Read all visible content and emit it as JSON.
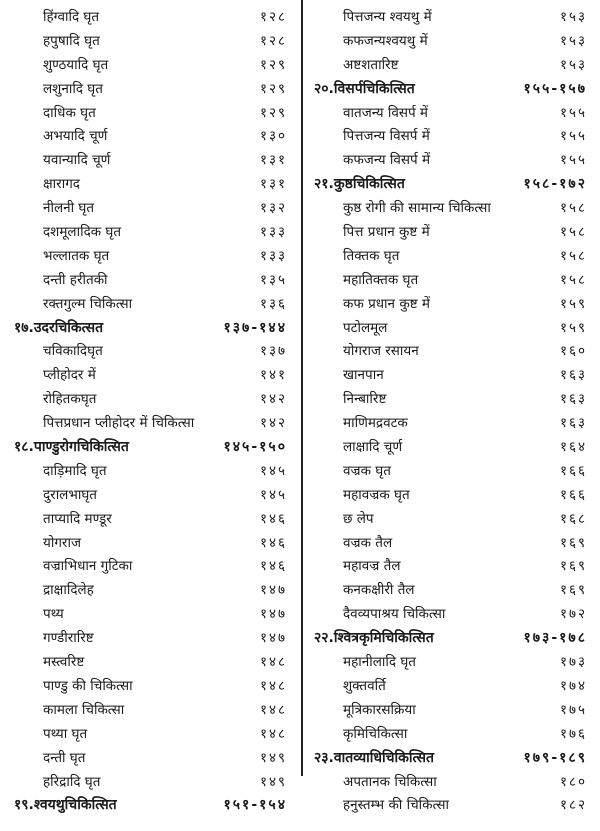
{
  "left": [
    {
      "title": "हिंग्वादि घृत",
      "page": "१२८"
    },
    {
      "title": "हपुषादि घृत",
      "page": "१२८"
    },
    {
      "title": "शुण्ठयादि घृत",
      "page": "१२९"
    },
    {
      "title": "लशुनादि घृत",
      "page": "१२९"
    },
    {
      "title": "दाधिक घृत",
      "page": "१२९"
    },
    {
      "title": "अभयादि चूर्ण",
      "page": "१३०"
    },
    {
      "title": "यवान्यादि चूर्ण",
      "page": "१३१"
    },
    {
      "title": "क्षारागद",
      "page": "१३१"
    },
    {
      "title": "नीलनी घृत",
      "page": "१३२"
    },
    {
      "title": "दशमूलादिक घृत",
      "page": "१३३"
    },
    {
      "title": "भल्लातक घृत",
      "page": "१३३"
    },
    {
      "title": "दन्ती हरीतकी",
      "page": "१३५"
    },
    {
      "title": "रक्तगुल्म चिकित्सा",
      "page": "१३६"
    },
    {
      "title": "१७.उदरचिकित्सत",
      "page": "१३७-१४४",
      "heading": true
    },
    {
      "title": "चविकादिघृत",
      "page": "१३७"
    },
    {
      "title": "प्लीहोदर में",
      "page": "१४१"
    },
    {
      "title": "रोहितकघृत",
      "page": "१४२"
    },
    {
      "title": "पित्तप्रधान प्लीहोदर में चिकित्सा",
      "page": "१४२"
    },
    {
      "title": "१८.पाण्डुरोगचिकित्सित",
      "page": "१४५-१५०",
      "heading": true
    },
    {
      "title": "दाड़िमादि घृत",
      "page": "१४५"
    },
    {
      "title": "दुरालभाघृत",
      "page": "१४५"
    },
    {
      "title": "ताप्यादि मण्डूर",
      "page": "१४६"
    },
    {
      "title": "योगराज",
      "page": "१४६"
    },
    {
      "title": "वज्राभिधान गुटिका",
      "page": "१४६"
    },
    {
      "title": "द्राक्षादिलेह",
      "page": "१४७"
    },
    {
      "title": "पथ्य",
      "page": "१४७"
    },
    {
      "title": "गण्डीरारिष्ट",
      "page": "१४७"
    },
    {
      "title": "मस्त्वरिष्ट",
      "page": "१४८"
    },
    {
      "title": "पाण्डु की चिकित्सा",
      "page": "१४८"
    },
    {
      "title": "कामला चिकित्सा",
      "page": "१४८"
    },
    {
      "title": "पथ्या घृत",
      "page": "१४८"
    },
    {
      "title": "दन्ती घृत",
      "page": "१४९"
    },
    {
      "title": "हरिद्रादि घृत",
      "page": "१४९"
    },
    {
      "title": "१९.श्वयथुचिकित्सित",
      "page": "१५१-१५४",
      "heading": true
    }
  ],
  "right": [
    {
      "title": "पित्तजन्य श्वयथु में",
      "page": "१५३"
    },
    {
      "title": "कफजन्यश्वयथु में",
      "page": "१५३"
    },
    {
      "title": "अष्टशतारिष्ट",
      "page": "१५३"
    },
    {
      "title": "२०.विसर्पचिकित्सित",
      "page": "१५५-१५७",
      "heading": true
    },
    {
      "title": "वातजन्य विसर्प में",
      "page": "१५५"
    },
    {
      "title": "पित्तजन्य विसर्प में",
      "page": "१५५"
    },
    {
      "title": "कफजन्य विसर्प में",
      "page": "१५५"
    },
    {
      "title": "२१.कुष्ठचिकित्सित",
      "page": "१५८-१७२",
      "heading": true
    },
    {
      "title": "कुष्ठ रोगी की सामान्य चिकित्सा",
      "page": "१५८"
    },
    {
      "title": "पित्त प्रधान कुष्ट में",
      "page": "१५८"
    },
    {
      "title": "तिक्तक घृत",
      "page": "१५८"
    },
    {
      "title": "महातिक्तक घृत",
      "page": "१५८"
    },
    {
      "title": "कफ प्रधान कुष्ट में",
      "page": "१५९"
    },
    {
      "title": "पटोलमूल",
      "page": "१५९"
    },
    {
      "title": "योगराज रसायन",
      "page": "१६०"
    },
    {
      "title": "खानपान",
      "page": "१६३"
    },
    {
      "title": "निन्बारिष्ट",
      "page": "१६३"
    },
    {
      "title": "माणिमद्रवटक",
      "page": "१६३"
    },
    {
      "title": "लाक्षादि चूर्ण",
      "page": "१६४"
    },
    {
      "title": "वज्रक घृत",
      "page": "१६६"
    },
    {
      "title": "महावज्रक घृत",
      "page": "१६६"
    },
    {
      "title": "छ लेप",
      "page": "१६८"
    },
    {
      "title": "वज्रक तैल",
      "page": "१६९"
    },
    {
      "title": "महावज्र तैल",
      "page": "१६९"
    },
    {
      "title": "कनकक्षीरी तैल",
      "page": "१६९"
    },
    {
      "title": "दैवव्यपाश्रय चिकित्सा",
      "page": "१७२"
    },
    {
      "title": "२२.श्वित्रकृमिचिकित्सित",
      "page": "१७३-१७८",
      "heading": true
    },
    {
      "title": "महानीलादि घृत",
      "page": "१७३"
    },
    {
      "title": "शुक्तवर्ति",
      "page": "१७४"
    },
    {
      "title": "मूत्रिकारसक्रिया",
      "page": "१७५"
    },
    {
      "title": "कृमिचिकित्सा",
      "page": "१७६"
    },
    {
      "title": "२३.वातव्याधिचिकित्सित",
      "page": "१७९-१८९",
      "heading": true
    },
    {
      "title": "अपतानक चिकित्सा",
      "page": "१८०"
    },
    {
      "title": "हनुस्तम्भ की चिकित्सा",
      "page": "१८२"
    }
  ]
}
